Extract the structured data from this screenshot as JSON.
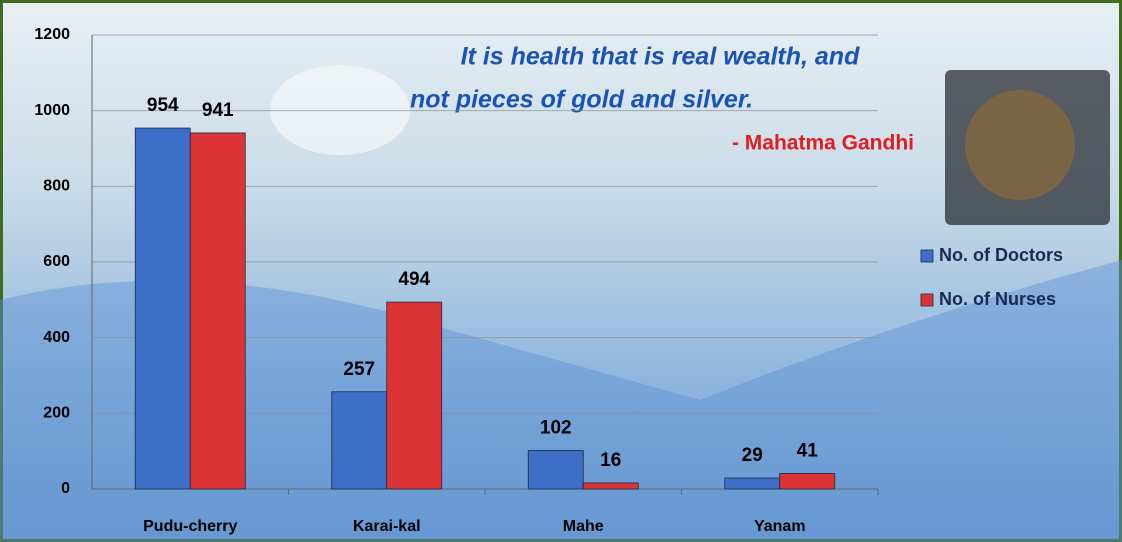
{
  "chart_data": {
    "type": "bar",
    "categories": [
      "Pudu-cherry",
      "Karai-kal",
      "Mahe",
      "Yanam"
    ],
    "series": [
      {
        "name": "No. of Doctors",
        "color": "#3d6fc8",
        "values": [
          954,
          257,
          102,
          29
        ]
      },
      {
        "name": "No. of Nurses",
        "color": "#dc3434",
        "values": [
          941,
          494,
          16,
          41
        ]
      }
    ],
    "ylim": [
      0,
      1200
    ],
    "yticks": [
      0,
      200,
      400,
      600,
      800,
      1000,
      1200
    ],
    "grid": true,
    "legend": "right",
    "annotations": [
      "It is health that is real wealth, and",
      "not pieces of gold and silver.",
      "- Mahatma Gandhi"
    ]
  }
}
